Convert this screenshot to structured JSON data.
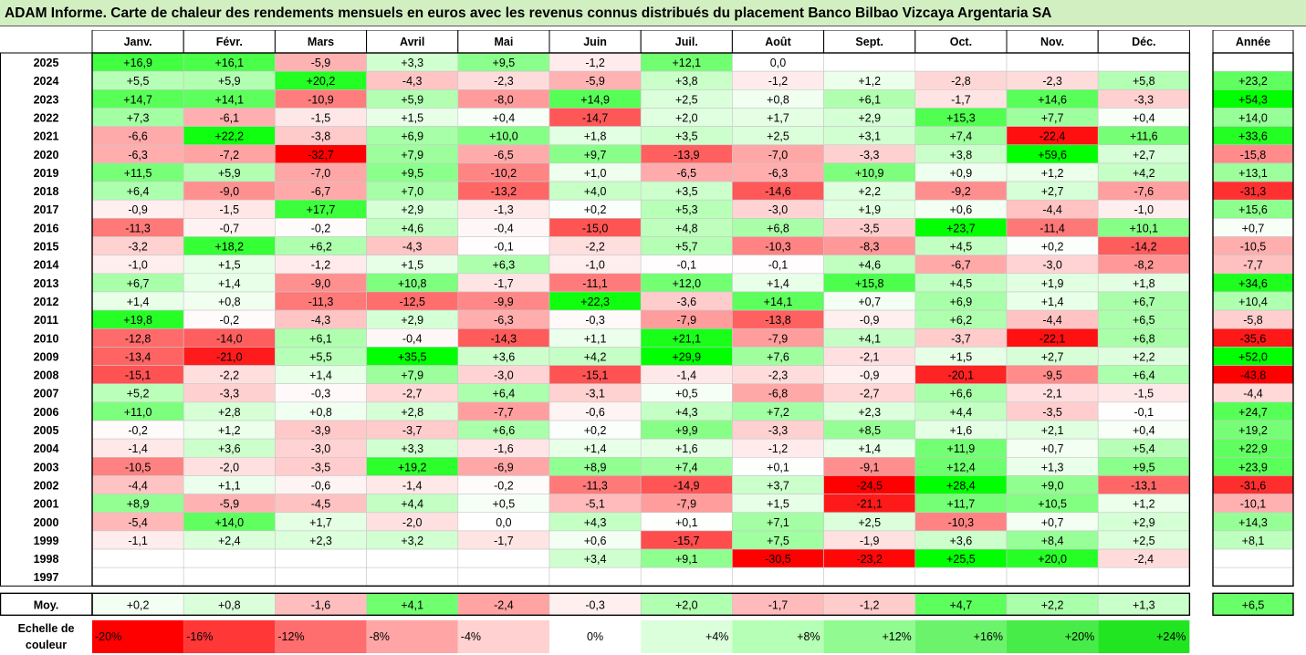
{
  "title": "ADAM Informe. Carte de chaleur des rendements mensuels en euros avec les revenus connus distribués du placement Banco Bilbao Vizcaya Argentaria SA",
  "chart_data": {
    "type": "heatmap",
    "months": [
      "Janv.",
      "Févr.",
      "Mars",
      "Avril",
      "Mai",
      "Juin",
      "Juil.",
      "Août",
      "Sept.",
      "Oct.",
      "Nov.",
      "Déc."
    ],
    "year_header": "Année",
    "rows": [
      {
        "year": "2025",
        "months": [
          "+16,9",
          "+16,1",
          "-5,9",
          "+3,3",
          "+9,5",
          "-1,2",
          "+12,1",
          "0,0",
          "",
          "",
          "",
          ""
        ],
        "annual": ""
      },
      {
        "year": "2024",
        "months": [
          "+5,5",
          "+5,9",
          "+20,2",
          "-4,3",
          "-2,3",
          "-5,9",
          "+3,8",
          "-1,2",
          "+1,2",
          "-2,8",
          "-2,3",
          "+5,8"
        ],
        "annual": "+23,2"
      },
      {
        "year": "2023",
        "months": [
          "+14,7",
          "+14,1",
          "-10,9",
          "+5,9",
          "-8,0",
          "+14,9",
          "+2,5",
          "+0,8",
          "+6,1",
          "-1,7",
          "+14,6",
          "-3,3"
        ],
        "annual": "+54,3"
      },
      {
        "year": "2022",
        "months": [
          "+7,3",
          "-6,1",
          "-1,5",
          "+1,5",
          "+0,4",
          "-14,7",
          "+2,0",
          "+1,7",
          "+2,9",
          "+15,3",
          "+7,7",
          "+0,4"
        ],
        "annual": "+14,0"
      },
      {
        "year": "2021",
        "months": [
          "-6,6",
          "+22,2",
          "-3,8",
          "+6,9",
          "+10,0",
          "+1,8",
          "+3,5",
          "+2,5",
          "+3,1",
          "+7,4",
          "-22,4",
          "+11,6"
        ],
        "annual": "+33,6"
      },
      {
        "year": "2020",
        "months": [
          "-6,3",
          "-7,2",
          "-32,7",
          "+7,9",
          "-6,5",
          "+9,7",
          "-13,9",
          "-7,0",
          "-3,3",
          "+3,8",
          "+59,6",
          "+2,7"
        ],
        "annual": "-15,8"
      },
      {
        "year": "2019",
        "months": [
          "+11,5",
          "+5,9",
          "-7,0",
          "+9,5",
          "-10,2",
          "+1,0",
          "-6,5",
          "-6,3",
          "+10,9",
          "+0,9",
          "+1,2",
          "+4,2"
        ],
        "annual": "+13,1"
      },
      {
        "year": "2018",
        "months": [
          "+6,4",
          "-9,0",
          "-6,7",
          "+7,0",
          "-13,2",
          "+4,0",
          "+3,5",
          "-14,6",
          "+2,2",
          "-9,2",
          "+2,7",
          "-7,6"
        ],
        "annual": "-31,3"
      },
      {
        "year": "2017",
        "months": [
          "-0,9",
          "-1,5",
          "+17,7",
          "+2,9",
          "-1,3",
          "+0,2",
          "+5,3",
          "-3,0",
          "+1,9",
          "+0,6",
          "-4,4",
          "-1,0"
        ],
        "annual": "+15,6"
      },
      {
        "year": "2016",
        "months": [
          "-11,3",
          "-0,7",
          "-0,2",
          "+4,6",
          "-0,4",
          "-15,0",
          "+4,8",
          "+6,8",
          "-3,5",
          "+23,7",
          "-11,4",
          "+10,1"
        ],
        "annual": "+0,7"
      },
      {
        "year": "2015",
        "months": [
          "-3,2",
          "+18,2",
          "+6,2",
          "-4,3",
          "-0,1",
          "-2,2",
          "+5,7",
          "-10,3",
          "-8,3",
          "+4,5",
          "+0,2",
          "-14,2"
        ],
        "annual": "-10,5"
      },
      {
        "year": "2014",
        "months": [
          "-1,0",
          "+1,5",
          "-1,2",
          "+1,5",
          "+6,3",
          "-1,0",
          "-0,1",
          "-0,1",
          "+4,6",
          "-6,7",
          "-3,0",
          "-8,2"
        ],
        "annual": "-7,7"
      },
      {
        "year": "2013",
        "months": [
          "+6,7",
          "+1,4",
          "-9,0",
          "+10,8",
          "-1,7",
          "-11,1",
          "+12,0",
          "+1,4",
          "+15,8",
          "+4,5",
          "+1,9",
          "+1,8"
        ],
        "annual": "+34,6"
      },
      {
        "year": "2012",
        "months": [
          "+1,4",
          "+0,8",
          "-11,3",
          "-12,5",
          "-9,9",
          "+22,3",
          "-3,6",
          "+14,1",
          "+0,7",
          "+6,9",
          "+1,4",
          "+6,7"
        ],
        "annual": "+10,4"
      },
      {
        "year": "2011",
        "months": [
          "+19,8",
          "-0,2",
          "-4,3",
          "+2,9",
          "-6,3",
          "-0,3",
          "-7,9",
          "-13,8",
          "-0,9",
          "+6,2",
          "-4,4",
          "+6,5"
        ],
        "annual": "-5,8"
      },
      {
        "year": "2010",
        "months": [
          "-12,8",
          "-14,0",
          "+6,1",
          "-0,4",
          "-14,3",
          "+1,1",
          "+21,1",
          "-7,9",
          "+4,1",
          "-3,7",
          "-22,1",
          "+6,8"
        ],
        "annual": "-35,6"
      },
      {
        "year": "2009",
        "months": [
          "-13,4",
          "-21,0",
          "+5,5",
          "+35,5",
          "+3,6",
          "+4,2",
          "+29,9",
          "+7,6",
          "-2,1",
          "+1,5",
          "+2,7",
          "+2,2"
        ],
        "annual": "+52,0"
      },
      {
        "year": "2008",
        "months": [
          "-15,1",
          "-2,2",
          "+1,4",
          "+7,9",
          "-3,0",
          "-15,1",
          "-1,4",
          "-2,3",
          "-0,9",
          "-20,1",
          "-9,5",
          "+6,4"
        ],
        "annual": "-43,8"
      },
      {
        "year": "2007",
        "months": [
          "+5,2",
          "-3,3",
          "-0,3",
          "-2,7",
          "+6,4",
          "-3,1",
          "+0,5",
          "-6,8",
          "-2,7",
          "+6,6",
          "-2,1",
          "-1,5"
        ],
        "annual": "-4,4"
      },
      {
        "year": "2006",
        "months": [
          "+11,0",
          "+2,8",
          "+0,8",
          "+2,8",
          "-7,7",
          "-0,6",
          "+4,3",
          "+7,2",
          "+2,3",
          "+4,4",
          "-3,5",
          "-0,1"
        ],
        "annual": "+24,7"
      },
      {
        "year": "2005",
        "months": [
          "-0,2",
          "+1,2",
          "-3,9",
          "-3,7",
          "+6,6",
          "+0,2",
          "+9,9",
          "-3,3",
          "+8,5",
          "+1,6",
          "+2,1",
          "+0,4"
        ],
        "annual": "+19,2"
      },
      {
        "year": "2004",
        "months": [
          "-1,4",
          "+3,6",
          "-3,0",
          "+3,3",
          "-1,6",
          "+1,4",
          "+1,6",
          "-1,2",
          "+1,4",
          "+11,9",
          "+0,7",
          "+5,4"
        ],
        "annual": "+22,9"
      },
      {
        "year": "2003",
        "months": [
          "-10,5",
          "-2,0",
          "-3,5",
          "+19,2",
          "-6,9",
          "+8,9",
          "+7,4",
          "+0,1",
          "-9,1",
          "+12,4",
          "+1,3",
          "+9,5"
        ],
        "annual": "+23,9"
      },
      {
        "year": "2002",
        "months": [
          "-4,4",
          "+1,1",
          "-0,6",
          "-1,4",
          "-0,2",
          "-11,3",
          "-14,9",
          "+3,7",
          "-24,5",
          "+28,4",
          "+9,0",
          "-13,1"
        ],
        "annual": "-31,6"
      },
      {
        "year": "2001",
        "months": [
          "+8,9",
          "-5,9",
          "-4,5",
          "+4,4",
          "+0,5",
          "-5,1",
          "-7,9",
          "+1,5",
          "-21,1",
          "+11,7",
          "+10,5",
          "+1,2"
        ],
        "annual": "-10,1"
      },
      {
        "year": "2000",
        "months": [
          "-5,4",
          "+14,0",
          "+1,7",
          "-2,0",
          "0,0",
          "+4,3",
          "+0,1",
          "+7,1",
          "+2,5",
          "-10,3",
          "+0,7",
          "+2,9"
        ],
        "annual": "+14,3"
      },
      {
        "year": "1999",
        "months": [
          "-1,1",
          "+2,4",
          "+2,3",
          "+3,2",
          "-1,7",
          "+0,6",
          "-15,7",
          "+7,5",
          "-1,9",
          "+3,6",
          "+8,4",
          "+2,5"
        ],
        "annual": "+8,1"
      },
      {
        "year": "1998",
        "months": [
          "",
          "",
          "",
          "",
          "",
          "+3,4",
          "+9,1",
          "-30,5",
          "-23,2",
          "+25,5",
          "+20,0",
          "-2,4"
        ],
        "annual": ""
      },
      {
        "year": "1997",
        "months": [
          "",
          "",
          "",
          "",
          "",
          "",
          "",
          "",
          "",
          "",
          "",
          ""
        ],
        "annual": ""
      }
    ],
    "average": {
      "label": "Moy.",
      "months": [
        "+0,2",
        "+0,8",
        "-1,6",
        "+4,1",
        "-2,4",
        "-0,3",
        "+2,0",
        "-1,7",
        "-1,2",
        "+4,7",
        "+2,2",
        "+1,3"
      ],
      "annual": "+6,5"
    },
    "scale": {
      "label_line1": "Echelle de",
      "label_line2": "couleur",
      "stops": [
        {
          "label": "-20%",
          "color": "#ff0000"
        },
        {
          "label": "-16%",
          "color": "#ff3737"
        },
        {
          "label": "-12%",
          "color": "#ff6e6e"
        },
        {
          "label": "-8%",
          "color": "#ffa5a5"
        },
        {
          "label": "-4%",
          "color": "#ffd1d1"
        },
        {
          "label": "0%",
          "color": "#ffffff"
        },
        {
          "label": "+4%",
          "color": "#dbffdb"
        },
        {
          "label": "+8%",
          "color": "#b6ffb6"
        },
        {
          "label": "+12%",
          "color": "#91fa91"
        },
        {
          "label": "+16%",
          "color": "#6cf36c"
        },
        {
          "label": "+20%",
          "color": "#48ec48"
        },
        {
          "label": "+24%",
          "color": "#22e522"
        }
      ]
    },
    "colors": {
      "negative_max": "#ff0000",
      "positive_max": "#00ff00",
      "neutral": "#ffffff"
    }
  }
}
